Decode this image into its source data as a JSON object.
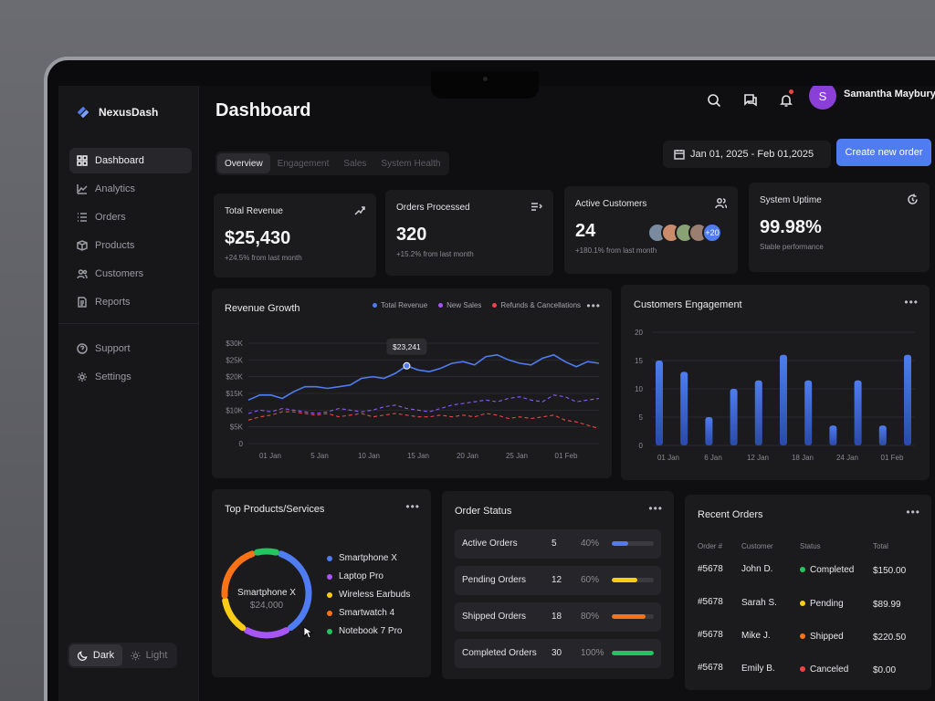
{
  "app": {
    "name": "NexusDash"
  },
  "sidebar": {
    "items": [
      {
        "label": "Dashboard",
        "icon": "grid-icon"
      },
      {
        "label": "Analytics",
        "icon": "chart-line-icon"
      },
      {
        "label": "Orders",
        "icon": "list-icon"
      },
      {
        "label": "Products",
        "icon": "box-icon"
      },
      {
        "label": "Customers",
        "icon": "users-icon"
      },
      {
        "label": "Reports",
        "icon": "document-icon"
      }
    ],
    "secondary": [
      {
        "label": "Support",
        "icon": "help-icon"
      },
      {
        "label": "Settings",
        "icon": "gear-icon"
      }
    ],
    "theme": {
      "dark": "Dark",
      "light": "Light"
    }
  },
  "header": {
    "title": "Dashboard",
    "user": {
      "initial": "S",
      "name": "Samantha Maybury"
    },
    "tabs": [
      "Overview",
      "Engagement",
      "Sales",
      "System Health"
    ],
    "date_range": "Jan 01, 2025 - Feb 01,2025",
    "create_button": "Create new order"
  },
  "kpis": [
    {
      "title": "Total Revenue",
      "value": "$25,430",
      "sub": "+24.5% from last month"
    },
    {
      "title": "Orders Processed",
      "value": "320",
      "sub": "+15.2% from last month"
    },
    {
      "title": "Active Customers",
      "value": "24",
      "sub": "+180.1% from last month",
      "more": "+20"
    },
    {
      "title": "System Uptime",
      "value": "99.98%",
      "sub": "Stable performance"
    }
  ],
  "revenue": {
    "title": "Revenue Growth",
    "legend": [
      "Total Revenue",
      "New Sales",
      "Refunds & Cancellations"
    ],
    "tooltip": "$23,241"
  },
  "engagement": {
    "title": "Customers Engagement"
  },
  "products": {
    "title": "Top Products/Services",
    "center_label": "Smartphone X",
    "center_value": "$24,000",
    "items": [
      "Smartphone X",
      "Laptop Pro",
      "Wireless Earbuds",
      "Smartwatch 4",
      "Notebook 7 Pro"
    ],
    "colors": [
      "#4f7cf0",
      "#a855f7",
      "#facc15",
      "#f97316",
      "#22c55e"
    ]
  },
  "order_status": {
    "title": "Order Status",
    "rows": [
      {
        "label": "Active Orders",
        "count": "5",
        "percent": "40%",
        "value": 0.4,
        "color": "#4f7cf0"
      },
      {
        "label": "Pending Orders",
        "count": "12",
        "percent": "60%",
        "value": 0.6,
        "color": "#facc15"
      },
      {
        "label": "Shipped Orders",
        "count": "18",
        "percent": "80%",
        "value": 0.8,
        "color": "#f97316"
      },
      {
        "label": "Completed Orders",
        "count": "30",
        "percent": "100%",
        "value": 1.0,
        "color": "#22c55e"
      }
    ]
  },
  "recent_orders": {
    "title": "Recent Orders",
    "headers": [
      "Order #",
      "Customer",
      "Status",
      "Total"
    ],
    "rows": [
      {
        "order": "#5678",
        "customer": "John D.",
        "status": "Completed",
        "color": "#22c55e",
        "total": "$150.00"
      },
      {
        "order": "#5678",
        "customer": "Sarah S.",
        "status": "Pending",
        "color": "#facc15",
        "total": "$89.99"
      },
      {
        "order": "#5678",
        "customer": "Mike J.",
        "status": "Shipped",
        "color": "#f97316",
        "total": "$220.50"
      },
      {
        "order": "#5678",
        "customer": "Emily B.",
        "status": "Canceled",
        "color": "#ef4444",
        "total": "$0.00"
      }
    ]
  },
  "chart_data": [
    {
      "type": "line",
      "title": "Revenue Growth",
      "x_ticks": [
        "01 Jan",
        "5 Jan",
        "10 Jan",
        "15 Jan",
        "20 Jan",
        "25 Jan",
        "01 Feb"
      ],
      "y_ticks": [
        "$30K",
        "$25K",
        "$20K",
        "$15K",
        "$10K",
        "$5K",
        "0"
      ],
      "ylim": [
        0,
        30000
      ],
      "x": [
        1,
        2,
        3,
        4,
        5,
        6,
        7,
        8,
        9,
        10,
        11,
        12,
        13,
        14,
        15,
        16,
        17,
        18,
        19,
        20,
        21,
        22,
        23,
        24,
        25,
        26,
        27,
        28,
        29,
        30,
        31,
        32
      ],
      "series": [
        {
          "name": "Total Revenue",
          "color": "#4f7cf0",
          "style": "solid",
          "values": [
            13000,
            14500,
            14500,
            13500,
            15500,
            17000,
            17000,
            16500,
            17000,
            17500,
            19500,
            20000,
            19500,
            21000,
            23241,
            22000,
            21500,
            22500,
            24000,
            24500,
            23500,
            26000,
            26500,
            25000,
            24000,
            23500,
            25500,
            26500,
            24500,
            23000,
            24500,
            24000
          ]
        },
        {
          "name": "New Sales",
          "color": "#8b5cf6",
          "style": "dashed",
          "values": [
            9000,
            10000,
            9500,
            10500,
            10000,
            9500,
            9000,
            9500,
            10500,
            10000,
            9500,
            10000,
            11000,
            11500,
            10500,
            10000,
            9500,
            10500,
            11500,
            12000,
            12500,
            13000,
            12500,
            13500,
            14000,
            13000,
            12500,
            14500,
            14000,
            12500,
            13000,
            13500
          ]
        },
        {
          "name": "Refunds & Cancellations",
          "color": "#ef4444",
          "style": "dashed",
          "values": [
            7000,
            8000,
            8500,
            9500,
            9500,
            9000,
            8500,
            9000,
            8000,
            8500,
            9000,
            8000,
            8500,
            9000,
            8500,
            8000,
            8000,
            8500,
            8000,
            8500,
            8000,
            9000,
            8500,
            7500,
            8000,
            7500,
            8000,
            8500,
            7000,
            6500,
            5500,
            4500
          ]
        }
      ]
    },
    {
      "type": "bar",
      "title": "Customers Engagement",
      "x_ticks": [
        "01 Jan",
        "6 Jan",
        "12 Jan",
        "18 Jan",
        "24 Jan",
        "01 Feb"
      ],
      "y_ticks": [
        "20",
        "15",
        "10",
        "5",
        "0"
      ],
      "ylim": [
        0,
        20
      ],
      "values": [
        15,
        13,
        5,
        10,
        11.5,
        16,
        11.5,
        3.5,
        11.5,
        3.5,
        16
      ],
      "color": "#4f7cf0"
    }
  ]
}
